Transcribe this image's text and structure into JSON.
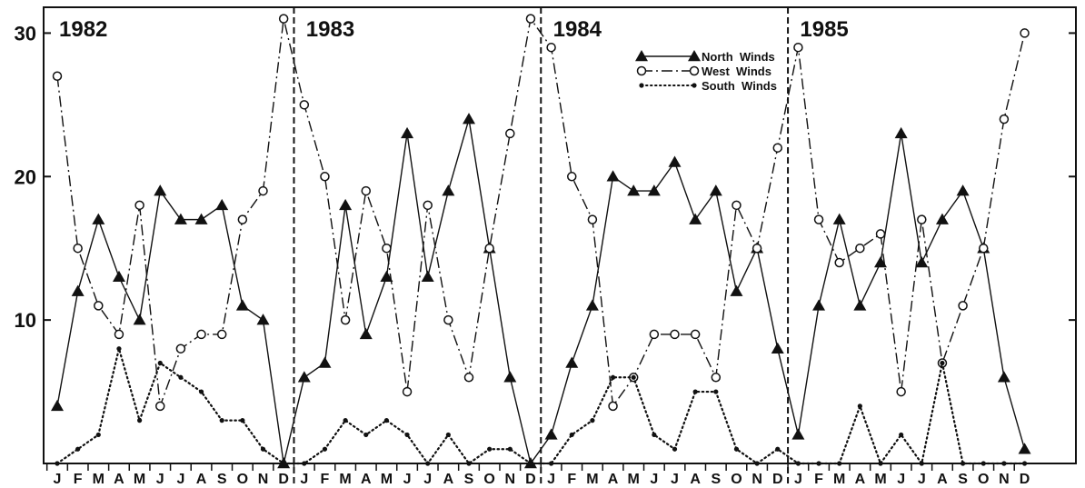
{
  "chart_data": {
    "type": "line",
    "ylim": [
      0,
      31
    ],
    "yticks": [
      10,
      20,
      30
    ],
    "ytick_labels": [
      "10",
      "20",
      "30"
    ],
    "month_labels": [
      "J",
      "F",
      "M",
      "A",
      "M",
      "J",
      "J",
      "A",
      "S",
      "O",
      "N",
      "D"
    ],
    "year_labels": [
      "1982",
      "1983",
      "1984",
      "1985"
    ],
    "years": 4,
    "colors": {
      "ink": "#111111"
    },
    "legend": {
      "position": "top-center",
      "entries": [
        "North  Winds",
        "West  Winds",
        "South  Winds"
      ]
    },
    "series": [
      {
        "name": "North  Winds",
        "marker": "filled-triangle",
        "line": "solid",
        "values": [
          4,
          12,
          17,
          13,
          10,
          19,
          17,
          17,
          18,
          11,
          10,
          0,
          6,
          7,
          18,
          9,
          13,
          23,
          13,
          19,
          24,
          15,
          6,
          0,
          2,
          7,
          11,
          20,
          19,
          19,
          21,
          17,
          19,
          12,
          15,
          8,
          2,
          11,
          17,
          11,
          14,
          23,
          14,
          17,
          19,
          15,
          6,
          1
        ]
      },
      {
        "name": "West  Winds",
        "marker": "open-circle",
        "line": "dash-dot",
        "values": [
          27,
          15,
          11,
          9,
          18,
          4,
          8,
          9,
          9,
          17,
          19,
          31,
          25,
          20,
          10,
          19,
          15,
          5,
          18,
          10,
          6,
          15,
          23,
          31,
          29,
          20,
          17,
          4,
          6,
          9,
          9,
          9,
          6,
          18,
          15,
          22,
          29,
          17,
          14,
          15,
          16,
          5,
          17,
          7,
          11,
          15,
          24,
          30
        ]
      },
      {
        "name": "South  Winds",
        "marker": "small-dot",
        "line": "dotted",
        "values": [
          0,
          1,
          2,
          8,
          3,
          7,
          6,
          5,
          3,
          3,
          1,
          0,
          0,
          1,
          3,
          2,
          3,
          2,
          0,
          2,
          0,
          1,
          1,
          0,
          0,
          2,
          3,
          6,
          6,
          2,
          1,
          5,
          5,
          1,
          0,
          1,
          0,
          0,
          0,
          4,
          0,
          2,
          0,
          7,
          0,
          0,
          0,
          0
        ]
      }
    ]
  }
}
